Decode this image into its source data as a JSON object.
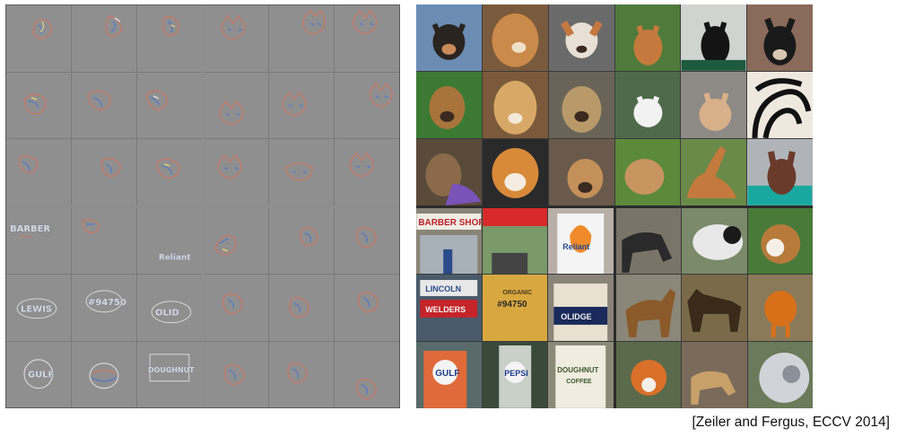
{
  "figure": {
    "citation": "[Zeiler and Fergus, ECCV 2014]",
    "left_panel": {
      "quadrants": [
        {
          "kind": "faces"
        },
        {
          "kind": "faces"
        },
        {
          "kind": "text",
          "cells": [
            "BARBER",
            "",
            "",
            "",
            "",
            "",
            "",
            "",
            ""
          ],
          "labels": [
            "BARBER",
            "",
            "Reliant",
            "",
            "",
            "OLID",
            "GULF",
            "",
            "DOUGHNUT"
          ]
        },
        {
          "kind": "faces"
        }
      ],
      "text_labels": {
        "q3_c1": "BARBER",
        "q3_c3": "Reliant",
        "q3_c4": "LEWIS",
        "q3_c5": "#94750",
        "q3_c6": "OLID",
        "q3_c7": "GULF",
        "q3_c9": "DOUGHNUT"
      }
    },
    "right_panel": {
      "text_labels": {
        "q3_c1": "BARBER SHOP",
        "q3_c3": "Reliant",
        "q3_c4": "LINCOLN",
        "q3_c4b": "WELDERS",
        "q3_c5": "#94750",
        "q3_c5b": "ORGANIC",
        "q3_c6": "OLIDGE",
        "q3_c7": "GULF",
        "q3_c8": "PEPSI",
        "q3_c9": "DOUGHNUT",
        "q3_c9b": "COFFEE"
      }
    },
    "colors": {
      "vis_background": "#8f8f8f",
      "grid_line": "#5a5a5a",
      "text": "#111111"
    }
  }
}
